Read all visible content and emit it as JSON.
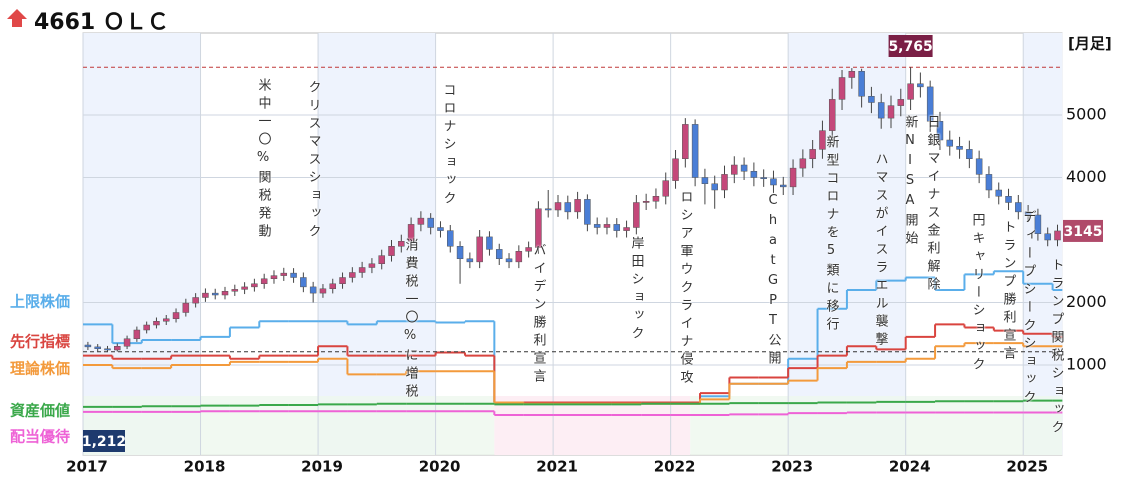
{
  "chart_data": {
    "type": "candlestick",
    "title": "4661 ＯＬＣ",
    "period_label": "[月足]",
    "xlim": [
      2017,
      2025.33
    ],
    "xticks": [
      2017,
      2018,
      2019,
      2020,
      2021,
      2022,
      2023,
      2024,
      2025
    ],
    "ylim": [
      -440,
      6312
    ],
    "yticks": [
      1000,
      2000,
      4000,
      5000
    ],
    "up_color": "#c4487a",
    "down_color": "#4a7ed6",
    "open": [
      1320,
      1290,
      1260,
      1240,
      1300,
      1420,
      1560,
      1640,
      1700,
      1740,
      1840,
      1990,
      2080,
      2150,
      2120,
      2180,
      2210,
      2250,
      2300,
      2380,
      2430,
      2470,
      2400,
      2250,
      2150,
      2220,
      2300,
      2400,
      2480,
      2560,
      2620,
      2750,
      2900,
      2980,
      3250,
      3350,
      3200,
      3150,
      2900,
      2700,
      2650,
      3050,
      2850,
      2700,
      2650,
      2820,
      2880,
      3500,
      3480,
      3600,
      3450,
      3650,
      3250,
      3200,
      3250,
      3150,
      3200,
      3600,
      3620,
      3700,
      3950,
      4300,
      4850,
      4000,
      3900,
      3800,
      4050,
      4200,
      4100,
      4000,
      3980,
      3880,
      3850,
      4150,
      4300,
      4450,
      4750,
      5250,
      5600,
      5700,
      5300,
      5200,
      4950,
      5150,
      5250,
      5500,
      5450,
      4900,
      4600,
      4500,
      4450,
      4300,
      4050,
      3800,
      3700,
      3600,
      3450,
      3400,
      3100,
      3000
    ],
    "high": [
      1370,
      1335,
      1305,
      1345,
      1470,
      1615,
      1695,
      1760,
      1800,
      1905,
      2060,
      2150,
      2225,
      2220,
      2250,
      2285,
      2325,
      2380,
      2460,
      2515,
      2555,
      2550,
      2480,
      2330,
      2295,
      2380,
      2480,
      2565,
      2650,
      2710,
      2845,
      3000,
      3085,
      3360,
      3460,
      3430,
      3300,
      3240,
      2980,
      2800,
      3160,
      3140,
      2940,
      2790,
      2915,
      2975,
      3620,
      3800,
      3720,
      3710,
      3770,
      3730,
      3360,
      3360,
      3350,
      3310,
      3720,
      3740,
      3825,
      4080,
      4440,
      4950,
      4930,
      4140,
      4030,
      4190,
      4340,
      4320,
      4240,
      4130,
      4110,
      4010,
      4290,
      4450,
      4600,
      4910,
      5420,
      5720,
      5750,
      5740,
      5450,
      5340,
      5310,
      5420,
      5765,
      5680,
      5550,
      5050,
      4750,
      4650,
      4590,
      4430,
      4180,
      3920,
      3820,
      3720,
      3560,
      3500,
      3200,
      3245
    ],
    "low": [
      1240,
      1220,
      1212,
      1215,
      1255,
      1370,
      1505,
      1585,
      1640,
      1680,
      1775,
      1920,
      2010,
      2050,
      2050,
      2105,
      2135,
      2175,
      2220,
      2300,
      2345,
      2315,
      2165,
      2000,
      2075,
      2145,
      2220,
      2320,
      2395,
      2470,
      2530,
      2655,
      2800,
      2880,
      3140,
      3090,
      3040,
      2800,
      2300,
      2550,
      2550,
      2750,
      2600,
      2550,
      2550,
      2720,
      2780,
      3360,
      3370,
      3330,
      3340,
      3140,
      3090,
      3090,
      3040,
      3040,
      3090,
      3480,
      3500,
      3570,
      3820,
      4160,
      3860,
      3570,
      3500,
      3670,
      3910,
      3960,
      3860,
      3850,
      3750,
      3720,
      3720,
      4010,
      4150,
      4300,
      4590,
      5080,
      5420,
      5120,
      5030,
      4780,
      4790,
      4980,
      5080,
      5280,
      4730,
      4440,
      4350,
      4300,
      4150,
      3910,
      3670,
      3570,
      3480,
      3330,
      3290,
      2990,
      2900,
      2900
    ],
    "close": [
      1290,
      1260,
      1240,
      1300,
      1420,
      1560,
      1640,
      1700,
      1740,
      1840,
      1990,
      2080,
      2150,
      2120,
      2180,
      2210,
      2250,
      2300,
      2380,
      2430,
      2470,
      2400,
      2250,
      2150,
      2220,
      2300,
      2400,
      2480,
      2560,
      2620,
      2750,
      2900,
      2980,
      3250,
      3350,
      3200,
      3150,
      2900,
      2700,
      2650,
      3050,
      2850,
      2700,
      2650,
      2820,
      2880,
      3500,
      3480,
      3600,
      3450,
      3650,
      3250,
      3200,
      3250,
      3150,
      3200,
      3600,
      3620,
      3700,
      3950,
      4300,
      4850,
      4000,
      3900,
      3800,
      4050,
      4200,
      4100,
      4000,
      3980,
      3880,
      3850,
      4150,
      4300,
      4450,
      4750,
      5250,
      5600,
      5700,
      5300,
      5200,
      4950,
      5150,
      5250,
      5500,
      5450,
      4900,
      4600,
      4500,
      4450,
      4300,
      4050,
      3800,
      3700,
      3600,
      3450,
      3400,
      3100,
      3000,
      3145
    ],
    "max_label": {
      "value": 5765,
      "label": "5,765"
    },
    "min_label": {
      "value": 1212,
      "label": "1,212"
    },
    "lines": [
      {
        "name": "上限株価",
        "color": "#5aaeea",
        "values": [
          1650,
          1350,
          1400,
          1400,
          1450,
          1600,
          1700,
          1700,
          1700,
          1650,
          1700,
          1700,
          1680,
          1700,
          400,
          400,
          400,
          400,
          400,
          400,
          400,
          500,
          700,
          700,
          1100,
          1900,
          2200,
          2350,
          2400,
          2200,
          2450,
          2500,
          2300,
          2200
        ]
      },
      {
        "name": "先行指標",
        "color": "#d9443f",
        "values": [
          1150,
          1100,
          1100,
          1150,
          1150,
          1100,
          1150,
          1150,
          1300,
          1150,
          1150,
          1150,
          1200,
          1150,
          400,
          400,
          400,
          400,
          400,
          400,
          400,
          550,
          800,
          800,
          950,
          1150,
          1300,
          1250,
          1450,
          1650,
          1600,
          1550,
          1500,
          1450
        ]
      },
      {
        "name": "理論株価",
        "color": "#f39a3c",
        "values": [
          1000,
          950,
          950,
          1000,
          1000,
          1050,
          1050,
          1050,
          1100,
          850,
          850,
          900,
          900,
          900,
          400,
          380,
          380,
          380,
          380,
          380,
          380,
          450,
          700,
          700,
          750,
          950,
          1050,
          1050,
          1100,
          1300,
          1350,
          1350,
          1300,
          1300
        ]
      },
      {
        "name": "資産価値",
        "color": "#3aa84a",
        "values": [
          330,
          330,
          340,
          340,
          350,
          350,
          360,
          360,
          370,
          370,
          380,
          380,
          380,
          380,
          370,
          370,
          370,
          370,
          370,
          380,
          380,
          380,
          390,
          390,
          390,
          400,
          400,
          410,
          410,
          420,
          420,
          420,
          430,
          430
        ]
      },
      {
        "name": "配当優待",
        "color": "#ee62d6",
        "values": [
          250,
          250,
          250,
          250,
          260,
          260,
          260,
          260,
          260,
          260,
          260,
          260,
          260,
          260,
          200,
          200,
          200,
          200,
          200,
          200,
          200,
          200,
          210,
          210,
          230,
          230,
          240,
          240,
          240,
          240,
          240,
          240,
          240,
          240
        ]
      }
    ],
    "annotations": [
      "米中一〇%関税発動",
      "クリスマスショック",
      "コロナショック",
      "消費税一〇%に増税",
      "バイデン勝利宣言",
      "岸田ショック",
      "ロシア軍ウクライナ侵攻",
      "ChatGPT公開",
      "新型コロナを5類に移行",
      "ハマスがイスラエル襲撃",
      "新NISA開始",
      "日銀マイナス金利解除",
      "円キャリーショック",
      "トランプ勝利宣言",
      "ディープシークショック",
      "トランプ関税ショック"
    ]
  }
}
